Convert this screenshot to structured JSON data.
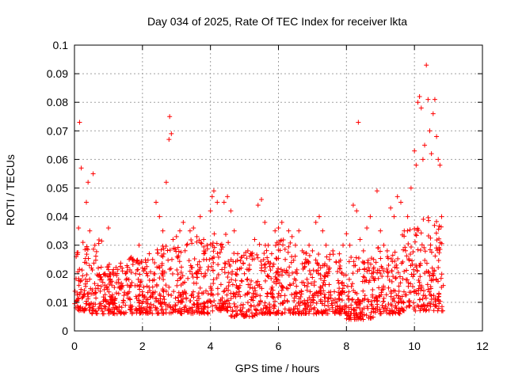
{
  "chart_data": {
    "type": "scatter",
    "title": "Day 034 of 2025, Rate Of TEC Index for receiver lkta",
    "xlabel": "GPS time / hours",
    "ylabel": "ROTI / TECUs",
    "xlim": [
      0,
      12
    ],
    "ylim": [
      0,
      0.1
    ],
    "x_ticks": [
      0,
      2,
      4,
      6,
      8,
      10,
      12
    ],
    "x_tick_labels": [
      "0",
      "2",
      "4",
      "6",
      "8",
      "10",
      "12"
    ],
    "y_ticks": [
      0,
      0.01,
      0.02,
      0.03,
      0.04,
      0.05,
      0.06,
      0.07,
      0.08,
      0.09,
      0.1
    ],
    "y_tick_labels": [
      "0",
      "0.01",
      "0.02",
      "0.03",
      "0.04",
      "0.05",
      "0.06",
      "0.07",
      "0.08",
      "0.09",
      "0.1"
    ],
    "grid": true,
    "marker": "+",
    "marker_color": "#ff0000",
    "series": [
      {
        "name": "ROTI",
        "x": [
          0.05,
          0.12,
          0.15,
          0.2,
          0.25,
          0.3,
          0.35,
          0.4,
          0.45,
          0.5,
          0.55,
          0.6,
          0.7,
          0.8,
          0.9,
          1.0,
          1.1,
          1.2,
          1.3,
          1.4,
          1.5,
          1.6,
          1.7,
          1.8,
          1.9,
          2.0,
          2.1,
          2.2,
          2.3,
          2.4,
          2.5,
          2.6,
          2.7,
          2.78,
          2.8,
          2.85,
          2.9,
          3.0,
          3.1,
          3.2,
          3.3,
          3.4,
          3.5,
          3.6,
          3.7,
          3.8,
          3.9,
          4.0,
          4.05,
          4.1,
          4.2,
          4.3,
          4.4,
          4.5,
          4.6,
          4.7,
          4.8,
          4.9,
          5.0,
          5.1,
          5.2,
          5.3,
          5.4,
          5.5,
          5.6,
          5.7,
          5.8,
          5.9,
          6.0,
          6.1,
          6.2,
          6.3,
          6.4,
          6.5,
          6.6,
          6.7,
          6.8,
          6.9,
          7.0,
          7.1,
          7.2,
          7.3,
          7.4,
          7.5,
          7.6,
          7.7,
          7.8,
          7.9,
          8.0,
          8.1,
          8.2,
          8.3,
          8.35,
          8.4,
          8.5,
          8.6,
          8.7,
          8.8,
          8.9,
          9.0,
          9.1,
          9.2,
          9.3,
          9.4,
          9.5,
          9.6,
          9.7,
          9.8,
          9.9,
          10.0,
          10.05,
          10.1,
          10.15,
          10.2,
          10.25,
          10.3,
          10.35,
          10.4,
          10.45,
          10.5,
          10.55,
          10.6,
          10.65,
          10.7,
          10.75,
          10.8
        ],
        "y": [
          0.026,
          0.036,
          0.073,
          0.057,
          0.031,
          0.024,
          0.045,
          0.052,
          0.035,
          0.022,
          0.055,
          0.03,
          0.022,
          0.018,
          0.02,
          0.036,
          0.016,
          0.02,
          0.018,
          0.022,
          0.02,
          0.018,
          0.025,
          0.02,
          0.03,
          0.022,
          0.024,
          0.027,
          0.025,
          0.045,
          0.04,
          0.035,
          0.052,
          0.067,
          0.075,
          0.069,
          0.032,
          0.033,
          0.035,
          0.038,
          0.03,
          0.035,
          0.036,
          0.033,
          0.04,
          0.032,
          0.03,
          0.042,
          0.047,
          0.049,
          0.045,
          0.03,
          0.045,
          0.047,
          0.042,
          0.035,
          0.027,
          0.022,
          0.02,
          0.028,
          0.027,
          0.032,
          0.044,
          0.046,
          0.038,
          0.03,
          0.027,
          0.035,
          0.036,
          0.038,
          0.025,
          0.035,
          0.033,
          0.03,
          0.035,
          0.028,
          0.025,
          0.03,
          0.028,
          0.038,
          0.04,
          0.035,
          0.03,
          0.025,
          0.028,
          0.024,
          0.022,
          0.03,
          0.034,
          0.03,
          0.044,
          0.042,
          0.073,
          0.032,
          0.028,
          0.036,
          0.04,
          0.025,
          0.049,
          0.035,
          0.03,
          0.028,
          0.043,
          0.04,
          0.047,
          0.045,
          0.035,
          0.04,
          0.05,
          0.063,
          0.058,
          0.08,
          0.082,
          0.078,
          0.06,
          0.065,
          0.093,
          0.081,
          0.07,
          0.062,
          0.076,
          0.081,
          0.068,
          0.06,
          0.058,
          0.04
        ]
      }
    ],
    "dense_band": [
      {
        "x0": 0.0,
        "x1": 0.4,
        "ymin": 0.007,
        "ymax": 0.03
      },
      {
        "x0": 0.4,
        "x1": 0.8,
        "ymin": 0.006,
        "ymax": 0.032
      },
      {
        "x0": 0.8,
        "x1": 1.6,
        "ymin": 0.006,
        "ymax": 0.024
      },
      {
        "x0": 1.6,
        "x1": 2.4,
        "ymin": 0.006,
        "ymax": 0.026
      },
      {
        "x0": 2.4,
        "x1": 3.2,
        "ymin": 0.006,
        "ymax": 0.03
      },
      {
        "x0": 3.2,
        "x1": 4.0,
        "ymin": 0.006,
        "ymax": 0.032
      },
      {
        "x0": 4.0,
        "x1": 4.6,
        "ymin": 0.007,
        "ymax": 0.034
      },
      {
        "x0": 4.6,
        "x1": 5.4,
        "ymin": 0.005,
        "ymax": 0.028
      },
      {
        "x0": 5.4,
        "x1": 6.4,
        "ymin": 0.006,
        "ymax": 0.032
      },
      {
        "x0": 6.4,
        "x1": 7.2,
        "ymin": 0.006,
        "ymax": 0.028
      },
      {
        "x0": 7.2,
        "x1": 8.0,
        "ymin": 0.006,
        "ymax": 0.027
      },
      {
        "x0": 8.0,
        "x1": 8.8,
        "ymin": 0.004,
        "ymax": 0.026
      },
      {
        "x0": 8.8,
        "x1": 9.6,
        "ymin": 0.006,
        "ymax": 0.03
      },
      {
        "x0": 9.6,
        "x1": 10.2,
        "ymin": 0.007,
        "ymax": 0.036
      },
      {
        "x0": 10.2,
        "x1": 10.85,
        "ymin": 0.007,
        "ymax": 0.04
      }
    ]
  }
}
